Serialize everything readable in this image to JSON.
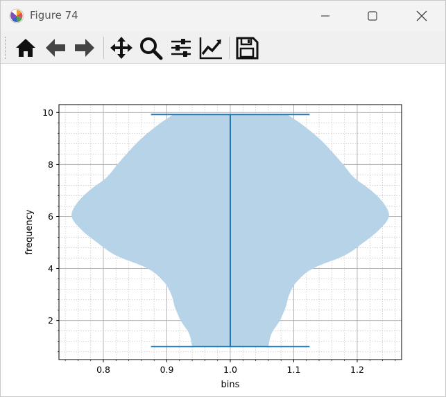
{
  "window": {
    "title": "Figure 74"
  },
  "icons": {
    "app": "matplotlib-logo-icon",
    "minimize": "minimize-icon",
    "maximize": "maximize-icon",
    "close": "close-icon"
  },
  "toolbar": {
    "tools": [
      "home-icon",
      "back-arrow-icon",
      "forward-arrow-icon",
      "pan-icon",
      "zoom-icon",
      "configure-subplots-icon",
      "edit-axis-icon",
      "save-icon"
    ]
  },
  "colors": {
    "violin_fill": "#b7d3e8",
    "violin_line": "#1f77b4",
    "grid_major": "#b0b0b0",
    "grid_minor": "#c8c8c8"
  },
  "chart_data": {
    "type": "violin",
    "title": "",
    "xlabel": "bins",
    "ylabel": "frequency",
    "xlim": [
      0.73,
      1.27
    ],
    "ylim": [
      0.5,
      10.3
    ],
    "x_ticks": [
      0.8,
      0.9,
      1.0,
      1.1,
      1.2
    ],
    "x_tick_labels": [
      "0.8",
      "0.9",
      "1.0",
      "1.1",
      "1.2"
    ],
    "y_ticks": [
      2,
      4,
      6,
      8,
      10
    ],
    "y_tick_labels": [
      "2",
      "4",
      "6",
      "8",
      "10"
    ],
    "grid": {
      "major": true,
      "minor": true
    },
    "violin": {
      "position": 1.0,
      "min": 1.0,
      "max": 9.92,
      "cap_half_width": 0.125,
      "profile": [
        [
          1.0,
          0.06
        ],
        [
          1.5,
          0.065
        ],
        [
          2.0,
          0.078
        ],
        [
          2.5,
          0.087
        ],
        [
          3.0,
          0.093
        ],
        [
          3.5,
          0.105
        ],
        [
          4.0,
          0.13
        ],
        [
          4.5,
          0.18
        ],
        [
          5.0,
          0.21
        ],
        [
          5.5,
          0.235
        ],
        [
          6.0,
          0.25
        ],
        [
          6.5,
          0.242
        ],
        [
          7.0,
          0.222
        ],
        [
          7.5,
          0.195
        ],
        [
          8.0,
          0.178
        ],
        [
          8.5,
          0.16
        ],
        [
          9.0,
          0.14
        ],
        [
          9.5,
          0.115
        ],
        [
          9.92,
          0.09
        ]
      ]
    }
  }
}
